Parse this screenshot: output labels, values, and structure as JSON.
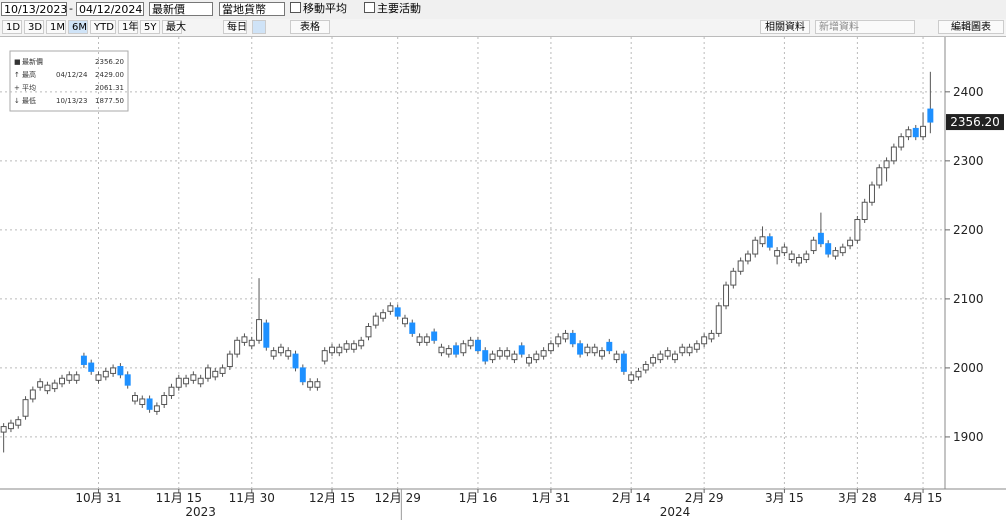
{
  "toolbar": {
    "start_date": "10/13/2023",
    "dash": "-",
    "end_date": "04/12/2024",
    "field": "最新價",
    "currency": "當地貨幣",
    "moving_average": "移動平均",
    "events": "主要活動",
    "periods": [
      "1D",
      "3D",
      "1M",
      "6M",
      "YTD",
      "1年",
      "5Y",
      "最大"
    ],
    "active_period": "6M",
    "frequency": "每日",
    "table": "表格",
    "related": "相關資料",
    "add_data": "新增資料",
    "edit_chart": "編輯圖表"
  },
  "chart_data": {
    "type": "candlestick",
    "stats": [
      {
        "name": "最新價",
        "value": 2356.2,
        "label": "2356.20"
      },
      {
        "name": "最高",
        "date": "04/12/24",
        "value": 2429,
        "label": "2429.00"
      },
      {
        "name": "平均",
        "value": 2061.31,
        "label": "2061.31"
      },
      {
        "name": "最低",
        "date": "10/13/23",
        "value": 1877.5,
        "label": "1877.50"
      }
    ],
    "last_price": {
      "value": 2356.2,
      "label": "2356.20"
    },
    "up_color": "#ffffff",
    "down_color": "#1e90ff",
    "edge_color": "#555555",
    "open": [
      1907,
      1912,
      1917,
      1930,
      1955,
      1972,
      1967,
      1970,
      1977,
      1982,
      1982,
      2017,
      2007,
      1982,
      1987,
      1992,
      2002,
      1990,
      1952,
      1947,
      1955,
      1937,
      1947,
      1960,
      1972,
      1977,
      1982,
      1977,
      1985,
      1987,
      1992,
      2002,
      2020,
      2037,
      2032,
      2040,
      2065,
      2017,
      2022,
      2017,
      2020,
      2000,
      1972,
      1972,
      2010,
      2022,
      2022,
      2027,
      2027,
      2032,
      2045,
      2062,
      2072,
      2082,
      2087,
      2064,
      2065,
      2037,
      2037,
      2052,
      2022,
      2020,
      2032,
      2022,
      2032,
      2040,
      2025,
      2012,
      2017,
      2017,
      2012,
      2032,
      2007,
      2012,
      2017,
      2025,
      2035,
      2042,
      2050,
      2035,
      2022,
      2022,
      2017,
      2037,
      2012,
      2020,
      1982,
      1987,
      1997,
      2007,
      2012,
      2017,
      2012,
      2022,
      2022,
      2027,
      2035,
      2042,
      2050,
      2090,
      2120,
      2140,
      2155,
      2165,
      2180,
      2190,
      2162,
      2167,
      2157,
      2152,
      2157,
      2170,
      2195,
      2180,
      2162,
      2167,
      2177,
      2185,
      2215,
      2240,
      2265,
      2290,
      2300,
      2320,
      2335,
      2347,
      2335,
      2375
    ],
    "high": [
      1920,
      1925,
      1930,
      1959,
      1973,
      1985,
      1980,
      1983,
      1990,
      1995,
      1995,
      2022,
      2012,
      1995,
      2000,
      2005,
      2007,
      1995,
      1965,
      1960,
      1960,
      1950,
      1965,
      1977,
      1990,
      1990,
      1995,
      1990,
      2005,
      2000,
      2005,
      2025,
      2045,
      2050,
      2045,
      2130,
      2070,
      2030,
      2035,
      2030,
      2025,
      2005,
      1985,
      1985,
      2030,
      2035,
      2035,
      2040,
      2040,
      2045,
      2065,
      2080,
      2085,
      2095,
      2092,
      2077,
      2070,
      2050,
      2050,
      2057,
      2035,
      2033,
      2037,
      2040,
      2045,
      2045,
      2030,
      2025,
      2030,
      2030,
      2025,
      2037,
      2020,
      2025,
      2030,
      2040,
      2050,
      2055,
      2055,
      2040,
      2035,
      2035,
      2030,
      2042,
      2025,
      2025,
      1995,
      2000,
      2010,
      2020,
      2025,
      2030,
      2025,
      2035,
      2035,
      2040,
      2050,
      2055,
      2095,
      2125,
      2145,
      2160,
      2170,
      2190,
      2205,
      2195,
      2175,
      2180,
      2170,
      2165,
      2170,
      2190,
      2225,
      2185,
      2175,
      2180,
      2190,
      2220,
      2245,
      2270,
      2295,
      2305,
      2325,
      2340,
      2350,
      2352,
      2370,
      2429
    ],
    "low": [
      1877.5,
      1907,
      1912,
      1925,
      1950,
      1967,
      1962,
      1965,
      1972,
      1977,
      1977,
      2000,
      1990,
      1977,
      1982,
      1987,
      1985,
      1970,
      1947,
      1942,
      1935,
      1932,
      1942,
      1955,
      1967,
      1972,
      1977,
      1972,
      1980,
      1982,
      1987,
      1997,
      2015,
      2032,
      2027,
      2035,
      2025,
      2012,
      2017,
      2012,
      1995,
      1975,
      1967,
      1967,
      2005,
      2017,
      2017,
      2022,
      2022,
      2027,
      2040,
      2057,
      2067,
      2077,
      2070,
      2059,
      2045,
      2032,
      2032,
      2035,
      2017,
      2015,
      2015,
      2017,
      2027,
      2020,
      2005,
      2007,
      2012,
      2012,
      2007,
      2015,
      2002,
      2007,
      2012,
      2020,
      2030,
      2037,
      2030,
      2015,
      2017,
      2017,
      2012,
      2020,
      2007,
      1990,
      1977,
      1982,
      1992,
      2002,
      2007,
      2012,
      2007,
      2017,
      2017,
      2022,
      2030,
      2037,
      2045,
      2085,
      2115,
      2135,
      2150,
      2160,
      2175,
      2170,
      2150,
      2162,
      2152,
      2147,
      2152,
      2165,
      2175,
      2160,
      2157,
      2162,
      2172,
      2180,
      2210,
      2235,
      2260,
      2270,
      2295,
      2315,
      2330,
      2330,
      2330,
      2340
    ],
    "close": [
      1915,
      1920,
      1925,
      1954,
      1968,
      1980,
      1975,
      1978,
      1985,
      1990,
      1990,
      2005,
      1995,
      1990,
      1995,
      2000,
      1990,
      1975,
      1960,
      1955,
      1940,
      1945,
      1960,
      1972,
      1985,
      1985,
      1990,
      1985,
      2000,
      1995,
      2000,
      2020,
      2040,
      2045,
      2040,
      2070,
      2030,
      2025,
      2030,
      2025,
      2000,
      1980,
      1980,
      1980,
      2025,
      2030,
      2030,
      2035,
      2035,
      2040,
      2060,
      2075,
      2080,
      2090,
      2075,
      2072,
      2050,
      2045,
      2045,
      2040,
      2030,
      2028,
      2020,
      2035,
      2040,
      2025,
      2010,
      2020,
      2025,
      2025,
      2020,
      2020,
      2015,
      2020,
      2025,
      2035,
      2045,
      2050,
      2035,
      2020,
      2030,
      2030,
      2025,
      2025,
      2020,
      1995,
      1990,
      1995,
      2005,
      2015,
      2020,
      2025,
      2020,
      2030,
      2030,
      2035,
      2045,
      2050,
      2090,
      2120,
      2140,
      2155,
      2165,
      2185,
      2190,
      2175,
      2170,
      2175,
      2165,
      2160,
      2165,
      2185,
      2180,
      2165,
      2170,
      2175,
      2185,
      2215,
      2240,
      2265,
      2290,
      2300,
      2320,
      2335,
      2345,
      2335,
      2350,
      2356.2
    ],
    "xlim": [
      -0.5,
      127.5
    ],
    "xticks": [
      {
        "value": 13,
        "label": "10月 31"
      },
      {
        "value": 24,
        "label": "11月 15"
      },
      {
        "value": 34,
        "label": "11月 30"
      },
      {
        "value": 45,
        "label": "12月 15"
      },
      {
        "value": 54,
        "label": "12月 29"
      },
      {
        "value": 65,
        "label": "1月 16"
      },
      {
        "value": 75,
        "label": "1月 31"
      },
      {
        "value": 86,
        "label": "2月 14"
      },
      {
        "value": 96,
        "label": "2月 29"
      },
      {
        "value": 107,
        "label": "3月 15"
      },
      {
        "value": 117,
        "label": "3月 28"
      },
      {
        "value": 126,
        "label": "4月 15"
      }
    ],
    "years": [
      {
        "value": 27,
        "label": "2023"
      },
      {
        "value": 92,
        "label": "2024"
      }
    ],
    "year_break": 54.5,
    "ylim": [
      1826,
      2478
    ],
    "yticks": [
      1900,
      2000,
      2100,
      2200,
      2300,
      2400
    ],
    "grid": true
  }
}
